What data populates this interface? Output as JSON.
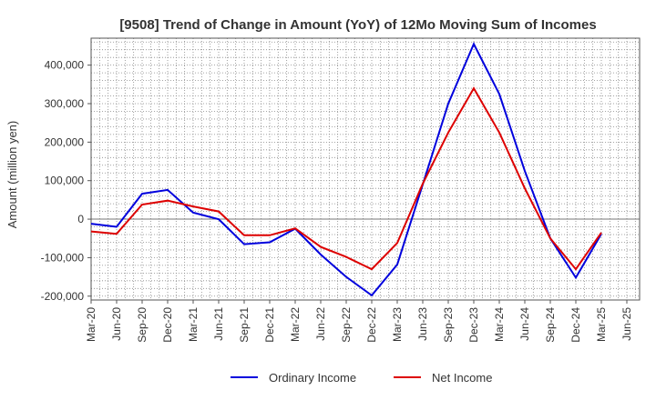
{
  "chart_data": {
    "type": "line",
    "title": "[9508]  Trend of Change in Amount (YoY) of 12Mo Moving Sum of Incomes",
    "xlabel": "",
    "ylabel": "Amount (million yen)",
    "ylim": [
      -210000,
      470000
    ],
    "yticks": [
      -200000,
      -100000,
      0,
      100000,
      200000,
      300000,
      400000
    ],
    "ytick_labels": [
      "-200,000",
      "-100,000",
      "0",
      "100,000",
      "200,000",
      "300,000",
      "400,000"
    ],
    "categories": [
      "Mar-20",
      "Jun-20",
      "Sep-20",
      "Dec-20",
      "Mar-21",
      "Jun-21",
      "Sep-21",
      "Dec-21",
      "Mar-22",
      "Jun-22",
      "Sep-22",
      "Dec-22",
      "Mar-23",
      "Jun-23",
      "Sep-23",
      "Dec-23",
      "Mar-24",
      "Jun-24",
      "Sep-24",
      "Dec-24",
      "Mar-25",
      "Jun-25"
    ],
    "grid": true,
    "legend_position": "bottom",
    "series": [
      {
        "name": "Ordinary Income",
        "color": "#0000dd",
        "values": [
          -12000,
          -20000,
          66000,
          76000,
          17000,
          0,
          -65000,
          -60000,
          -25000,
          -92000,
          -150000,
          -198000,
          -118000,
          90000,
          300000,
          455000,
          325000,
          125000,
          -50000,
          -152000,
          -38000,
          null
        ]
      },
      {
        "name": "Net Income",
        "color": "#dd0000",
        "values": [
          -32000,
          -38000,
          38000,
          48000,
          33000,
          20000,
          -42000,
          -42000,
          -24000,
          -72000,
          -98000,
          -130000,
          -62000,
          92000,
          225000,
          340000,
          225000,
          80000,
          -50000,
          -130000,
          -35000,
          null
        ]
      }
    ]
  }
}
